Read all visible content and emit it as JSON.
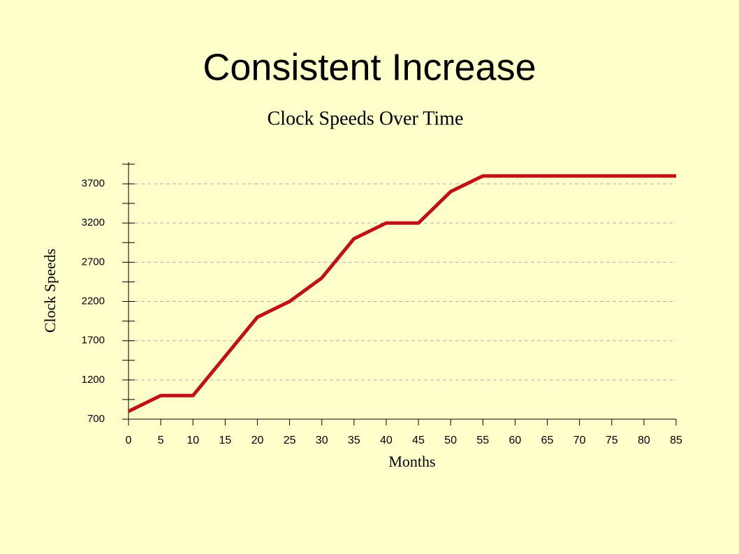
{
  "slide_title": "Consistent Increase",
  "chart_data": {
    "type": "line",
    "title": "Clock Speeds Over Time",
    "x_label": "Months",
    "y_label": "Clock Speeds",
    "x": [
      0,
      5,
      10,
      20,
      25,
      30,
      35,
      40,
      45,
      50,
      55,
      85
    ],
    "values": [
      800,
      1000,
      1000,
      2000,
      2200,
      2500,
      3000,
      3200,
      3200,
      3600,
      3800,
      3800
    ],
    "color": "#c0101a",
    "xlim": [
      0,
      85
    ],
    "xticks": [
      0,
      5,
      10,
      15,
      20,
      25,
      30,
      35,
      40,
      45,
      50,
      55,
      60,
      65,
      70,
      75,
      80,
      85
    ],
    "ylim": [
      700,
      3950
    ],
    "yticks": [
      700,
      1200,
      1700,
      2200,
      2700,
      3200,
      3700
    ],
    "yminorticks": [
      950,
      1450,
      1950,
      2450,
      2950,
      3450,
      3950
    ],
    "grid": true
  }
}
